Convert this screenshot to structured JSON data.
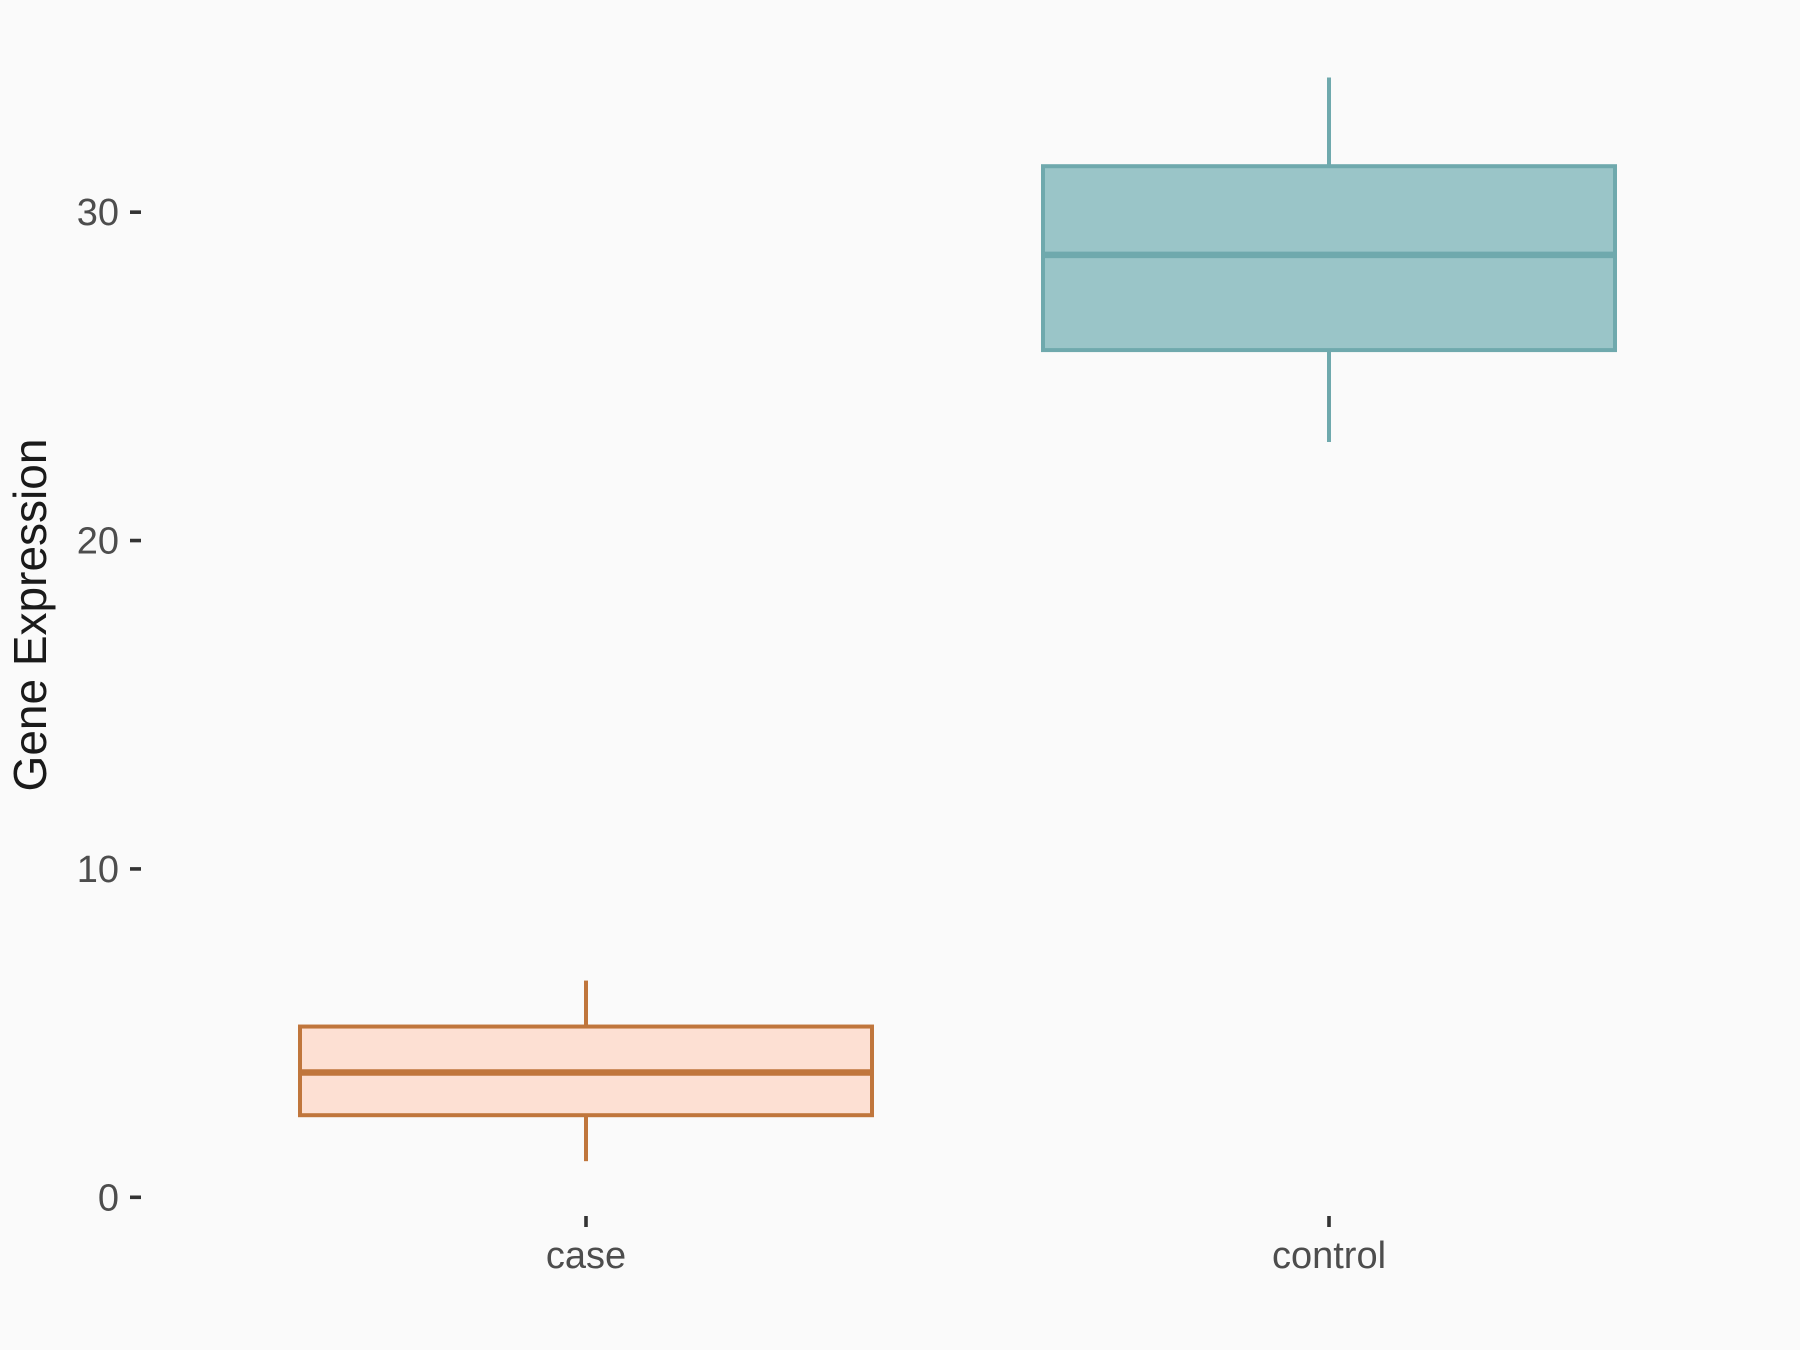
{
  "chart_data": {
    "type": "boxplot",
    "title": "",
    "xlabel": "",
    "ylabel": "Gene Expression",
    "categories": [
      "case",
      "control"
    ],
    "yticks": [
      0,
      10,
      20,
      30
    ],
    "ylim": [
      -0.6,
      35.7
    ],
    "grid": false,
    "legend": "none",
    "series": [
      {
        "name": "case",
        "min": 1.1,
        "q1": 2.5,
        "median": 3.8,
        "q3": 5.2,
        "max": 6.6,
        "outliers": [],
        "fill": "#FDE0D3",
        "stroke": "#C0763C"
      },
      {
        "name": "control",
        "min": 23.0,
        "q1": 25.8,
        "median": 28.7,
        "q3": 31.4,
        "max": 34.1,
        "outliers": [],
        "fill": "#9AC5C8",
        "stroke": "#6FA9AD"
      }
    ]
  },
  "colors": {
    "background": "#FAFAFA",
    "axis_text": "#4D4D4D",
    "axis_title": "#1A1A1A",
    "tick_mark": "#333333"
  }
}
